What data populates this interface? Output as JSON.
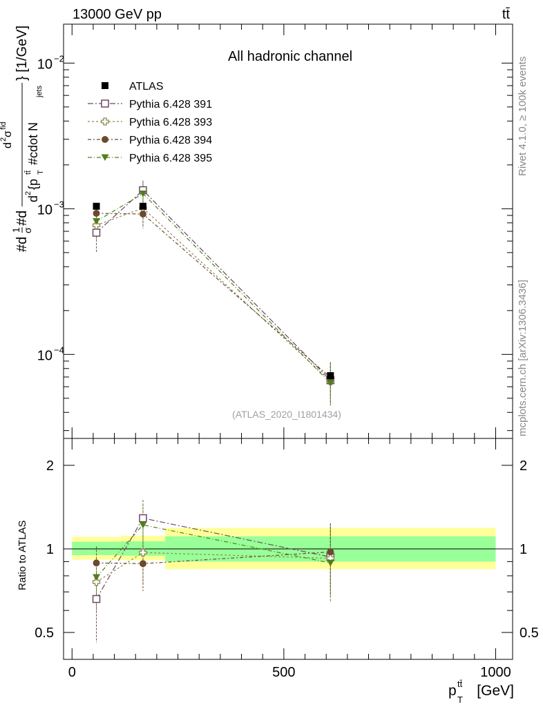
{
  "header": {
    "left": "13000 GeV pp",
    "right": "tt̄"
  },
  "side_texts": {
    "rivet": "Rivet 4.1.0, ≥ 100k events",
    "mcplots": "mcplots.cern.ch [arXiv:1306.3436]"
  },
  "chart_data": [
    {
      "type": "line",
      "id": "main",
      "title": "All hadronic channel",
      "watermark": "(ATLAS_2020_I1801434)",
      "xlabel": "p_T^{tt̄} [GeV]",
      "xlabel_parts": {
        "p": "p",
        "sup": "tt̄",
        "sub": "T",
        "unit": "[GeV]"
      },
      "ylabel": "#d\\frac{1}{σ}#d\\frac{d^{2}σ^{fid}}{d^{2}{p_{T}^{tt̄} #cdot N_{jets}}} [1/GeV]",
      "ylabel_parts": {
        "a": "#d",
        "b": "1",
        "c": "σ",
        "d": "#d",
        "e": "d",
        "f": "σ",
        "g": "fid",
        "h": "2",
        "i": "d",
        "j": "{p",
        "k": "tt̄",
        "l": "T",
        "m": "#cdot N",
        "n": "jets",
        "o": "} [1/GeV]"
      },
      "yscale": "log",
      "xlim": [
        -20,
        1040
      ],
      "ylim": [
        2.65e-05,
        0.0185
      ],
      "yticks": [
        {
          "value": 0.0001,
          "base": "10",
          "exp": "−4"
        },
        {
          "value": 0.001,
          "base": "10",
          "exp": "−3"
        },
        {
          "value": 0.01,
          "base": "10",
          "exp": "−2"
        }
      ],
      "x": [
        57.5,
        167.5,
        610
      ],
      "series": [
        {
          "name": "ATLAS",
          "marker": "square-filled",
          "color": "#000000",
          "values": [
            0.00104,
            0.00104,
            7.15e-05
          ],
          "err_up": [
            0,
            0,
            0
          ],
          "err_dn": [
            0,
            0,
            0
          ]
        },
        {
          "name": "Pythia 6.428 391",
          "marker": "square-open",
          "color": "#6e4660",
          "values": [
            0.000685,
            0.00134,
            6.65e-05
          ],
          "err_up": [
            0.00017,
            0.00022,
            2.2e-05
          ],
          "err_dn": [
            0.00019,
            0.0003,
            2.1e-05
          ]
        },
        {
          "name": "Pythia 6.428 393",
          "marker": "cross-open",
          "color": "#8a8a52",
          "values": [
            0.00077,
            0.00101,
            6.55e-05
          ],
          "err_up": [
            0.00015,
            0.00021,
            2.1e-05
          ],
          "err_dn": [
            0.00016,
            0.00024,
            2e-05
          ]
        },
        {
          "name": "Pythia 6.428 394",
          "marker": "circle-filled",
          "color": "#6b4a2f",
          "values": [
            0.00093,
            0.00092,
            6.95e-05
          ],
          "err_up": [
            0.00013,
            0.00016,
            1.8e-05
          ],
          "err_dn": [
            0.00014,
            0.00019,
            1.9e-05
          ]
        },
        {
          "name": "Pythia 6.428 395",
          "marker": "triangle-down-filled",
          "color": "#4f7f1c",
          "values": [
            0.00082,
            0.00127,
            6.35e-05
          ],
          "err_up": [
            0.00014,
            0.00024,
            2e-05
          ],
          "err_dn": [
            0.00015,
            0.00027,
            1.9e-05
          ]
        }
      ]
    },
    {
      "type": "line",
      "id": "ratio",
      "ylabel": "Ratio to ATLAS",
      "yscale": "log",
      "xlim": [
        -20,
        1040
      ],
      "ylim": [
        0.4,
        2.5
      ],
      "xticks": [
        0,
        500,
        1000
      ],
      "xticklabels": [
        "0",
        "500",
        "1000"
      ],
      "yticks": [
        0.5,
        1,
        2
      ],
      "yticklabels": [
        "0.5",
        "1",
        "2"
      ],
      "bands": [
        {
          "x0": 0,
          "x1": 115,
          "inner": [
            0.95,
            1.06
          ],
          "outer": [
            0.915,
            1.105
          ]
        },
        {
          "x0": 115,
          "x1": 220,
          "inner": [
            0.945,
            1.065
          ],
          "outer": [
            0.91,
            1.115
          ]
        },
        {
          "x0": 220,
          "x1": 1000,
          "inner": [
            0.9,
            1.11
          ],
          "outer": [
            0.845,
            1.19
          ]
        }
      ],
      "x": [
        57.5,
        167.5,
        610
      ],
      "series": [
        {
          "name": "Pythia 6.428 391",
          "values": [
            0.66,
            1.29,
            0.935
          ],
          "err_up": [
            0.16,
            0.21,
            0.3
          ],
          "err_dn": [
            0.2,
            0.28,
            0.26
          ]
        },
        {
          "name": "Pythia 6.428 393",
          "values": [
            0.76,
            0.97,
            0.925
          ],
          "err_up": [
            0.15,
            0.2,
            0.29
          ],
          "err_dn": [
            0.16,
            0.23,
            0.25
          ]
        },
        {
          "name": "Pythia 6.428 394",
          "values": [
            0.89,
            0.885,
            0.975
          ],
          "err_up": [
            0.13,
            0.15,
            0.26
          ],
          "err_dn": [
            0.14,
            0.18,
            0.26
          ]
        },
        {
          "name": "Pythia 6.428 395",
          "values": [
            0.79,
            1.22,
            0.89
          ],
          "err_up": [
            0.14,
            0.23,
            0.28
          ],
          "err_dn": [
            0.15,
            0.26,
            0.25
          ]
        }
      ]
    }
  ],
  "colors": {
    "inner_band": "#99ff99",
    "outer_band": "#ffff99",
    "watermark": "#a0a0a0",
    "side_text": "#888888"
  }
}
